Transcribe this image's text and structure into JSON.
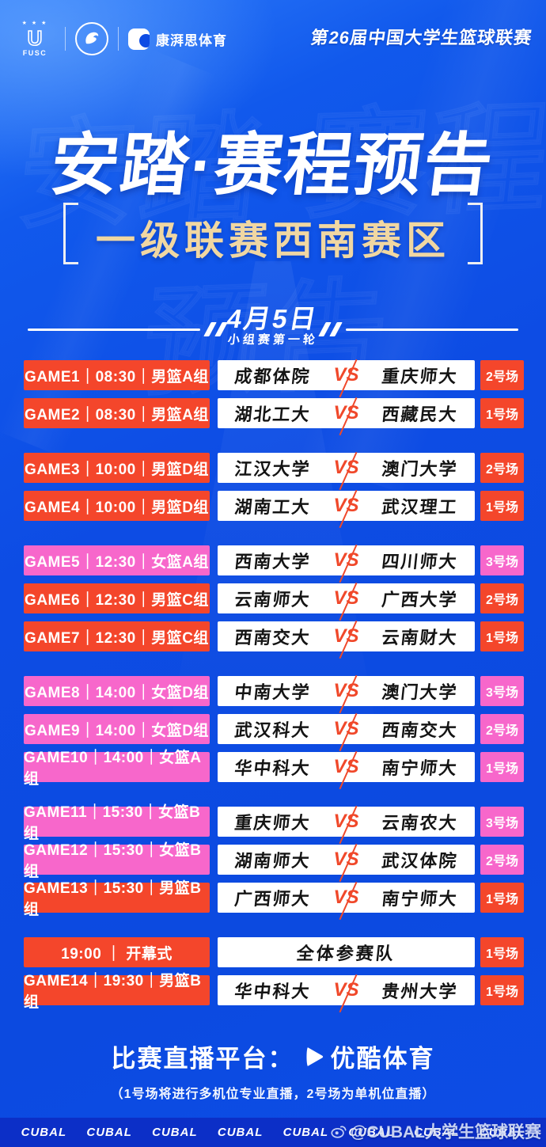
{
  "header": {
    "fusc_label": "FUSC",
    "sponsor_label": "康湃思体育",
    "league_title": "第26届中国大学生篮球联赛"
  },
  "hero": {
    "title": "安踏·赛程预告",
    "subtitle": "一级联赛西南赛区"
  },
  "date_section": {
    "date": "4月5日",
    "round": "小组赛第一轮"
  },
  "schedule": {
    "vs_label": "VS",
    "groups": [
      {
        "rows": [
          {
            "label": "GAME1｜08:30｜男篮A组",
            "color": "red",
            "team1": "成都体院",
            "team2": "重庆师大",
            "court": "2号场"
          },
          {
            "label": "GAME2｜08:30｜男篮A组",
            "color": "red",
            "team1": "湖北工大",
            "team2": "西藏民大",
            "court": "1号场"
          }
        ]
      },
      {
        "rows": [
          {
            "label": "GAME3｜10:00｜男篮D组",
            "color": "red",
            "team1": "江汉大学",
            "team2": "澳门大学",
            "court": "2号场"
          },
          {
            "label": "GAME4｜10:00｜男篮D组",
            "color": "red",
            "team1": "湖南工大",
            "team2": "武汉理工",
            "court": "1号场"
          }
        ]
      },
      {
        "rows": [
          {
            "label": "GAME5｜12:30｜女篮A组",
            "color": "pink",
            "team1": "西南大学",
            "team2": "四川师大",
            "court": "3号场"
          },
          {
            "label": "GAME6｜12:30｜男篮C组",
            "color": "red",
            "team1": "云南师大",
            "team2": "广西大学",
            "court": "2号场"
          },
          {
            "label": "GAME7｜12:30｜男篮C组",
            "color": "red",
            "team1": "西南交大",
            "team2": "云南财大",
            "court": "1号场"
          }
        ]
      },
      {
        "rows": [
          {
            "label": "GAME8｜14:00｜女篮D组",
            "color": "pink",
            "team1": "中南大学",
            "team2": "澳门大学",
            "court": "3号场"
          },
          {
            "label": "GAME9｜14:00｜女篮D组",
            "color": "pink",
            "team1": "武汉科大",
            "team2": "西南交大",
            "court": "2号场"
          },
          {
            "label": "GAME10｜14:00｜女篮A组",
            "color": "pink",
            "team1": "华中科大",
            "team2": "南宁师大",
            "court": "1号场"
          }
        ]
      },
      {
        "rows": [
          {
            "label": "GAME11｜15:30｜女篮B组",
            "color": "pink",
            "team1": "重庆师大",
            "team2": "云南农大",
            "court": "3号场"
          },
          {
            "label": "GAME12｜15:30｜女篮B组",
            "color": "pink",
            "team1": "湖南师大",
            "team2": "武汉体院",
            "court": "2号场"
          },
          {
            "label": "GAME13｜15:30｜男篮B组",
            "color": "red",
            "team1": "广西师大",
            "team2": "南宁师大",
            "court": "1号场"
          }
        ]
      },
      {
        "rows": [
          {
            "label": "19:00 ｜ 开幕式",
            "color": "red",
            "center": "全体参赛队",
            "court": "1号场"
          },
          {
            "label": "GAME14｜19:30｜男篮B组",
            "color": "red",
            "team1": "华中科大",
            "team2": "贵州大学",
            "court": "1号场"
          }
        ]
      }
    ]
  },
  "footer": {
    "live_label": "比赛直播平台：",
    "platform": "优酷体育",
    "note": "（1号场将进行多机位专业直播，2号场为单机位直播）"
  },
  "bottom_bar": {
    "brand_items": [
      "CUBAL",
      "CUBAL",
      "CUBAL",
      "CUBAL",
      "CUBAL",
      "CUBAL",
      "CUBAL",
      "CUBAL"
    ],
    "watermark": "@CUBAL大学生篮球联赛"
  },
  "colors": {
    "background_blue": "#0d4ce4",
    "accent_red": "#f4462b",
    "accent_pink": "#f767cb",
    "subtitle_gold": "#f0d7a2",
    "vs_red": "#f0482a",
    "bottom_bar_blue": "#0c2fc7"
  }
}
